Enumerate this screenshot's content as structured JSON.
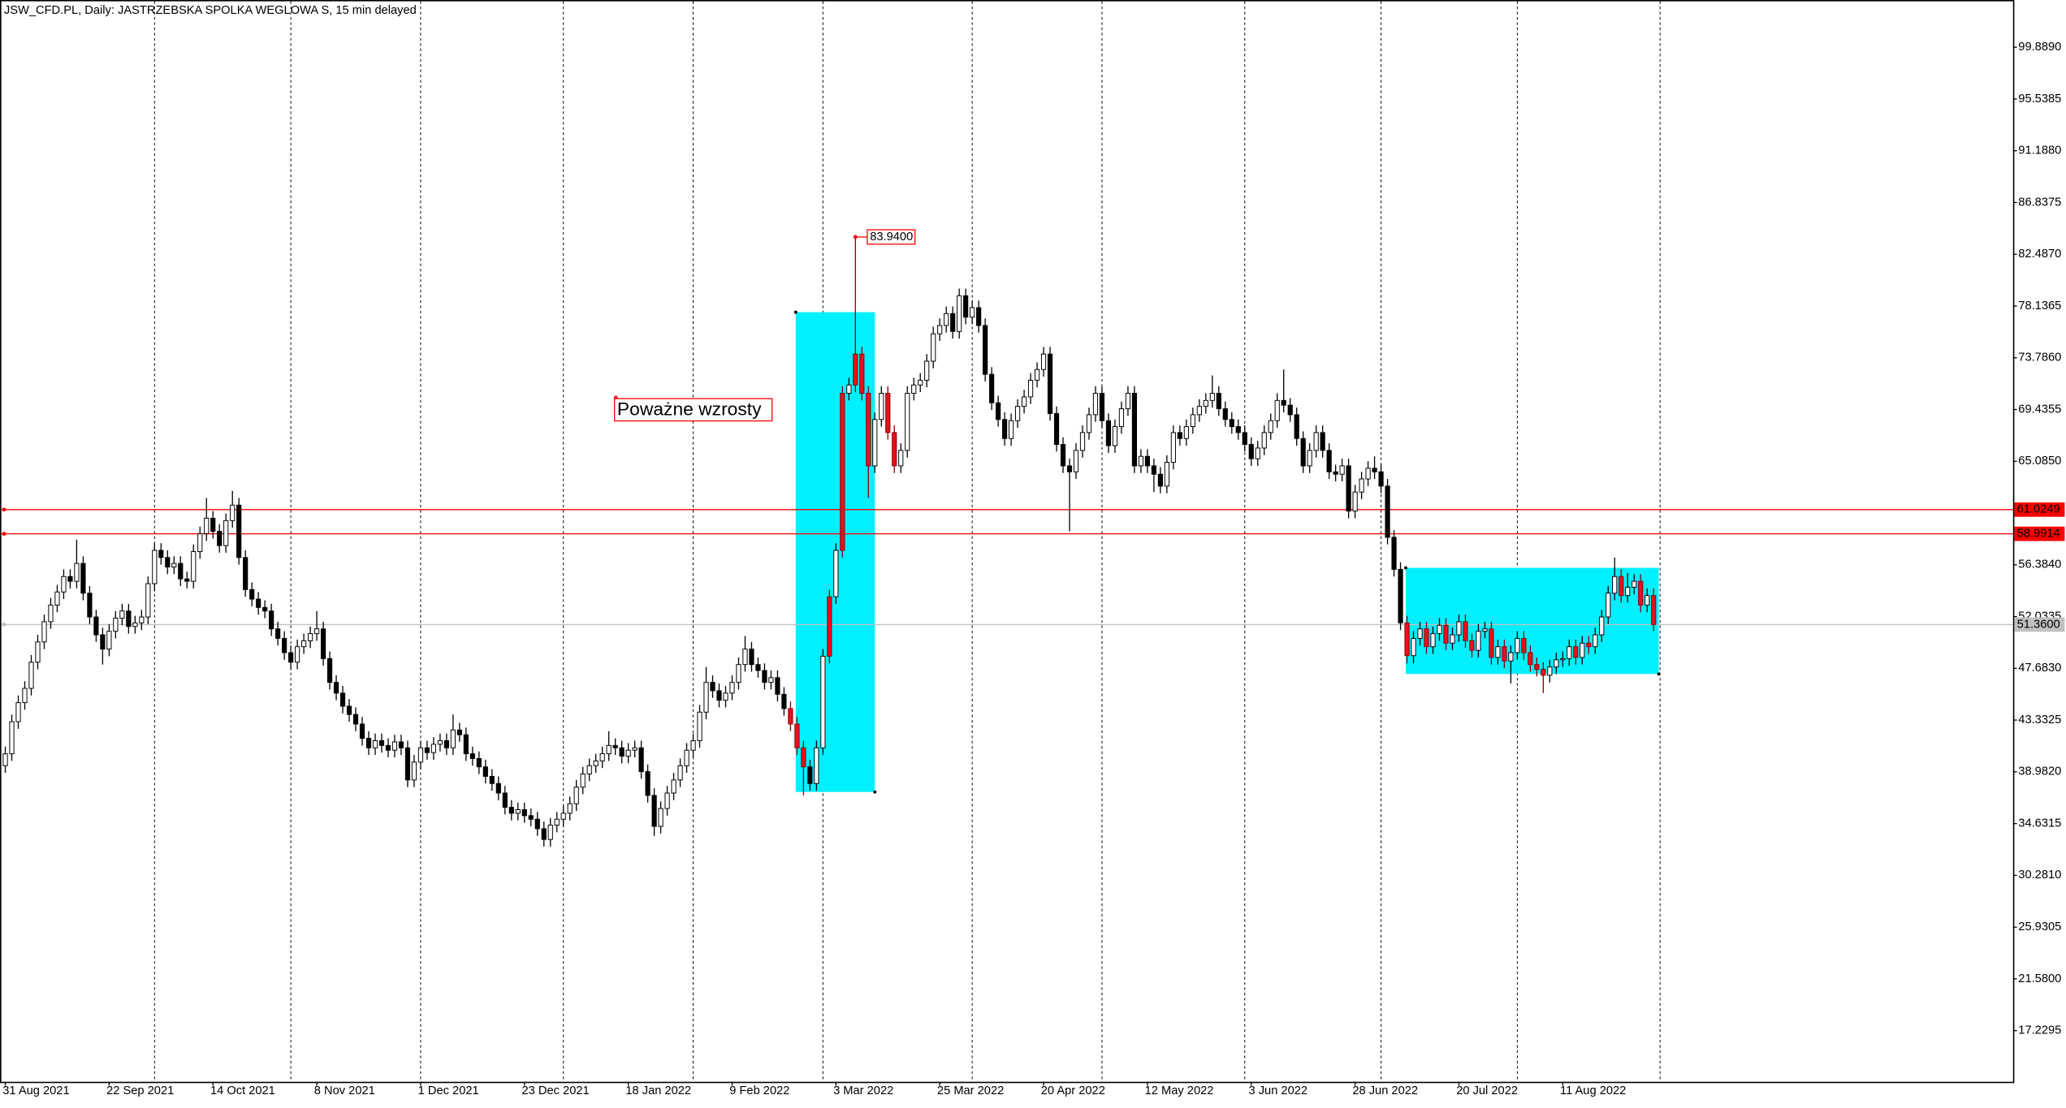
{
  "chart_data": {
    "type": "candlestick",
    "title": "JSW_CFD.PL, Daily:  JASTRZEBSKA SPOLKA WEGLOWA S, 15 min delayed",
    "open": [
      39.5,
      40.5,
      43.2,
      44.8,
      46.0,
      48.2,
      49.9,
      51.6,
      53.0,
      54.1,
      55.4,
      55.0,
      56.5,
      54.0,
      52.0,
      50.5,
      49.3,
      50.8,
      51.9,
      52.5,
      51.2,
      51.5,
      52.0,
      54.8,
      57.6,
      57.0,
      56.2,
      56.5,
      55.2,
      55.0,
      57.5,
      59.0,
      60.3,
      59.2,
      58.0,
      60.1,
      61.4,
      57.0,
      54.3,
      53.5,
      52.8,
      52.5,
      51.0,
      50.2,
      49.0,
      48.2,
      49.5,
      50.0,
      50.6,
      51.0,
      48.5,
      46.5,
      45.6,
      44.5,
      43.8,
      43.0,
      41.8,
      41.0,
      41.6,
      41.2,
      40.8,
      41.5,
      41.0,
      38.3,
      39.8,
      41.0,
      40.6,
      41.3,
      41.6,
      41.0,
      42.5,
      42.1,
      40.5,
      40.1,
      39.4,
      38.6,
      38.0,
      37.2,
      36.0,
      35.5,
      35.8,
      35.3,
      35.0,
      34.2,
      33.3,
      34.5,
      35.0,
      35.5,
      36.3,
      37.7,
      38.8,
      39.5,
      39.9,
      40.5,
      41.2,
      41.0,
      40.3,
      40.8,
      41.0,
      39.0,
      37.0,
      34.4,
      35.9,
      37.2,
      38.3,
      39.5,
      40.8,
      41.6,
      44.0,
      46.5,
      45.8,
      45.0,
      45.6,
      46.5,
      48.0,
      49.3,
      48.0,
      47.5,
      46.5,
      46.9,
      45.5,
      44.3,
      43.0,
      41.0,
      39.4,
      38.0,
      41.0,
      48.7,
      53.7,
      57.6,
      70.8,
      71.5,
      74.1,
      70.8,
      64.7,
      68.6,
      70.8,
      67.5,
      64.7,
      66.0,
      70.8,
      71.5,
      71.9,
      73.5,
      75.8,
      76.5,
      77.5,
      76.0,
      79.0,
      77.2,
      78.0,
      76.5,
      72.4,
      70.0,
      68.6,
      67.0,
      68.5,
      69.7,
      70.5,
      71.9,
      72.8,
      74.1,
      69.1,
      66.5,
      64.7,
      64.2,
      66.0,
      67.5,
      69.0,
      70.8,
      68.5,
      66.4,
      68.0,
      69.5,
      70.8,
      64.7,
      65.5,
      64.7,
      64.0,
      63.0,
      65.0,
      67.5,
      67.0,
      68.0,
      69.0,
      69.7,
      70.2,
      70.8,
      69.5,
      68.6,
      68.0,
      67.5,
      66.5,
      65.3,
      66.2,
      67.5,
      68.5,
      70.2,
      69.8,
      69.0,
      67.0,
      64.7,
      66.0,
      67.5,
      66.0,
      64.2,
      64.0,
      64.7,
      60.9,
      62.5,
      63.6,
      64.5,
      64.2,
      63.0,
      58.7,
      56.0,
      51.5,
      48.75,
      50.2,
      51.0,
      49.5,
      50.6,
      51.3,
      49.8,
      50.5,
      51.6,
      50.0,
      49.2,
      50.8,
      51.0,
      48.6,
      49.5,
      48.3,
      49.0,
      50.2,
      49.0,
      48.0,
      47.6,
      47.1,
      47.8,
      48.4,
      48.5,
      49.5,
      48.6,
      49.8,
      49.5,
      50.5,
      52.0,
      54.0,
      55.4,
      53.8,
      54.5,
      55.0,
      53.0,
      53.8
    ],
    "high": [
      41.1,
      43.8,
      45.4,
      46.6,
      48.8,
      50.5,
      52.2,
      53.6,
      54.7,
      56.0,
      56.0,
      58.5,
      57.1,
      54.6,
      52.6,
      51.1,
      51.4,
      52.5,
      53.1,
      53.1,
      52.1,
      52.6,
      55.4,
      58.2,
      58.2,
      57.6,
      57.1,
      57.1,
      55.8,
      58.1,
      59.6,
      62.0,
      60.9,
      59.8,
      60.7,
      62.6,
      62.0,
      57.6,
      54.9,
      54.1,
      53.4,
      53.1,
      51.6,
      50.8,
      49.6,
      50.1,
      50.6,
      51.2,
      52.5,
      51.6,
      49.1,
      47.1,
      46.2,
      45.1,
      44.4,
      43.6,
      42.4,
      42.2,
      42.2,
      41.8,
      42.1,
      42.1,
      41.6,
      40.4,
      41.6,
      41.6,
      41.9,
      42.2,
      42.2,
      43.8,
      43.1,
      42.7,
      41.1,
      40.7,
      40.0,
      39.2,
      38.6,
      37.8,
      36.6,
      36.4,
      36.4,
      35.9,
      35.6,
      34.8,
      35.1,
      35.6,
      36.1,
      36.9,
      38.3,
      39.4,
      40.1,
      40.5,
      41.1,
      42.4,
      41.8,
      41.6,
      41.4,
      41.6,
      41.6,
      39.6,
      37.6,
      36.5,
      37.8,
      38.9,
      40.1,
      41.4,
      42.2,
      44.6,
      47.8,
      47.1,
      46.4,
      46.2,
      47.1,
      48.6,
      50.4,
      49.9,
      48.6,
      48.1,
      47.5,
      47.5,
      46.1,
      44.9,
      43.6,
      41.6,
      40.0,
      41.6,
      49.3,
      54.3,
      58.2,
      71.4,
      72.1,
      83.94,
      74.7,
      71.4,
      69.2,
      71.4,
      71.4,
      68.1,
      66.6,
      71.4,
      72.1,
      72.5,
      74.1,
      76.4,
      77.1,
      78.1,
      78.1,
      79.6,
      79.6,
      78.6,
      78.6,
      77.1,
      73.0,
      70.6,
      69.2,
      69.1,
      70.3,
      71.1,
      72.5,
      73.4,
      74.7,
      74.7,
      69.7,
      67.1,
      65.3,
      66.6,
      68.1,
      69.6,
      71.4,
      71.4,
      69.1,
      68.6,
      70.1,
      71.4,
      71.4,
      66.1,
      66.1,
      65.3,
      64.6,
      65.6,
      68.1,
      68.1,
      68.6,
      69.6,
      70.3,
      70.8,
      72.3,
      71.4,
      70.1,
      69.2,
      68.6,
      68.1,
      67.1,
      66.8,
      68.1,
      69.1,
      70.8,
      72.8,
      70.4,
      69.6,
      67.6,
      66.6,
      68.1,
      68.1,
      66.6,
      64.8,
      65.3,
      65.3,
      63.1,
      64.2,
      65.1,
      65.5,
      64.8,
      63.6,
      59.3,
      56.6,
      52.1,
      50.8,
      51.6,
      51.6,
      51.2,
      51.9,
      51.9,
      51.1,
      52.2,
      52.2,
      50.6,
      51.4,
      51.6,
      51.6,
      50.1,
      50.1,
      49.6,
      50.8,
      50.8,
      49.6,
      48.6,
      48.2,
      48.4,
      49.0,
      49.1,
      50.1,
      50.1,
      50.4,
      50.4,
      51.1,
      52.6,
      54.6,
      57.0,
      56.0,
      55.7,
      55.6,
      55.6,
      54.4,
      54.4
    ],
    "low": [
      38.9,
      39.9,
      42.6,
      44.2,
      45.4,
      47.6,
      49.3,
      51.0,
      52.4,
      53.5,
      54.4,
      54.4,
      53.4,
      51.4,
      49.9,
      48.0,
      48.7,
      50.2,
      51.3,
      50.6,
      50.6,
      50.9,
      51.4,
      54.2,
      56.4,
      55.6,
      55.6,
      54.6,
      54.4,
      54.4,
      56.9,
      58.4,
      58.6,
      57.4,
      57.4,
      59.5,
      56.4,
      53.7,
      52.9,
      52.2,
      51.9,
      50.4,
      49.6,
      48.4,
      47.6,
      47.6,
      48.9,
      49.4,
      50.0,
      47.9,
      45.9,
      45.0,
      43.9,
      43.2,
      42.4,
      41.2,
      40.4,
      40.4,
      40.6,
      40.2,
      40.2,
      40.4,
      37.7,
      37.7,
      39.2,
      40.0,
      40.0,
      40.7,
      40.4,
      40.4,
      41.5,
      39.9,
      39.5,
      38.8,
      38.0,
      37.4,
      36.6,
      35.4,
      34.9,
      34.9,
      34.7,
      34.4,
      33.6,
      32.7,
      32.7,
      33.9,
      34.4,
      34.9,
      35.7,
      37.1,
      38.2,
      38.9,
      39.3,
      39.9,
      40.4,
      39.7,
      39.7,
      40.2,
      38.4,
      36.4,
      33.6,
      33.8,
      35.3,
      36.6,
      37.7,
      38.9,
      40.2,
      41.0,
      43.4,
      45.2,
      44.4,
      44.4,
      45.0,
      45.9,
      47.4,
      47.4,
      46.9,
      45.9,
      45.9,
      44.9,
      43.7,
      42.4,
      40.4,
      37.0,
      37.4,
      37.4,
      40.4,
      48.1,
      53.1,
      57.0,
      70.2,
      70.9,
      70.2,
      62.0,
      64.1,
      68.0,
      66.9,
      64.1,
      64.1,
      65.4,
      70.2,
      70.9,
      71.3,
      72.9,
      75.2,
      75.9,
      75.4,
      75.4,
      76.6,
      76.6,
      75.9,
      71.8,
      69.4,
      68.0,
      66.4,
      66.4,
      67.9,
      69.1,
      69.9,
      71.3,
      72.2,
      68.5,
      65.9,
      64.1,
      59.2,
      63.6,
      65.4,
      66.9,
      68.4,
      67.9,
      65.8,
      65.8,
      67.4,
      68.9,
      64.1,
      64.1,
      64.1,
      62.5,
      62.4,
      62.4,
      64.4,
      66.4,
      66.4,
      67.4,
      68.4,
      69.1,
      69.6,
      68.9,
      68.0,
      67.4,
      66.9,
      65.9,
      64.7,
      64.7,
      65.6,
      66.9,
      67.9,
      69.2,
      68.4,
      66.4,
      64.1,
      64.1,
      65.4,
      65.4,
      63.6,
      63.4,
      63.4,
      60.3,
      60.3,
      61.9,
      63.0,
      63.6,
      62.4,
      58.1,
      55.4,
      50.9,
      48.1,
      48.1,
      49.6,
      48.9,
      48.9,
      50.0,
      49.2,
      49.2,
      49.9,
      49.4,
      48.6,
      48.6,
      50.2,
      48.0,
      48.0,
      47.7,
      46.4,
      48.4,
      48.4,
      47.4,
      47.0,
      45.6,
      46.5,
      47.2,
      47.8,
      47.9,
      48.0,
      48.0,
      48.9,
      48.9,
      49.9,
      51.4,
      53.4,
      53.2,
      53.2,
      53.9,
      52.4,
      52.4,
      50.8
    ],
    "close": [
      40.5,
      43.2,
      44.8,
      46.0,
      48.2,
      49.9,
      51.6,
      53.0,
      54.1,
      55.4,
      55.0,
      56.5,
      54.0,
      52.0,
      50.5,
      49.3,
      50.8,
      51.9,
      52.5,
      51.2,
      51.5,
      52.0,
      54.8,
      57.6,
      57.0,
      56.2,
      56.5,
      55.2,
      55.0,
      57.5,
      59.0,
      60.3,
      59.2,
      58.0,
      60.1,
      61.4,
      57.0,
      54.3,
      53.5,
      52.8,
      52.5,
      51.0,
      50.2,
      49.0,
      48.2,
      49.5,
      50.0,
      50.6,
      51.0,
      48.5,
      46.5,
      45.6,
      44.5,
      43.8,
      43.0,
      41.8,
      41.0,
      41.6,
      41.2,
      40.8,
      41.5,
      41.0,
      38.3,
      39.8,
      41.0,
      40.6,
      41.3,
      41.6,
      41.0,
      42.5,
      42.1,
      40.5,
      40.1,
      39.4,
      38.6,
      38.0,
      37.2,
      36.0,
      35.5,
      35.8,
      35.3,
      35.0,
      34.2,
      33.3,
      34.5,
      35.0,
      35.5,
      36.3,
      37.7,
      38.8,
      39.5,
      39.9,
      40.5,
      41.2,
      41.0,
      40.3,
      40.8,
      41.0,
      39.0,
      37.0,
      34.4,
      35.9,
      37.2,
      38.3,
      39.5,
      40.8,
      41.6,
      44.0,
      46.5,
      45.8,
      45.0,
      45.6,
      46.5,
      48.0,
      49.3,
      48.0,
      47.5,
      46.5,
      46.9,
      45.5,
      44.3,
      43.0,
      41.0,
      39.4,
      38.0,
      41.0,
      48.7,
      53.7,
      57.6,
      70.8,
      71.5,
      74.1,
      70.8,
      64.7,
      68.6,
      70.8,
      67.5,
      64.7,
      66.0,
      70.8,
      71.5,
      71.9,
      73.5,
      75.8,
      76.5,
      77.5,
      76.0,
      79.0,
      77.2,
      78.0,
      76.5,
      72.4,
      70.0,
      68.6,
      67.0,
      68.5,
      69.7,
      70.5,
      71.9,
      72.8,
      74.1,
      69.1,
      66.5,
      64.7,
      64.2,
      66.0,
      67.5,
      69.0,
      70.8,
      68.5,
      66.4,
      68.0,
      69.5,
      70.8,
      64.7,
      65.5,
      64.7,
      64.0,
      63.0,
      65.0,
      67.5,
      67.0,
      68.0,
      69.0,
      69.7,
      70.2,
      70.8,
      69.5,
      68.6,
      68.0,
      67.5,
      66.5,
      65.3,
      66.2,
      67.5,
      68.5,
      70.2,
      69.8,
      69.0,
      67.0,
      64.7,
      66.0,
      67.5,
      66.0,
      64.2,
      64.0,
      64.7,
      60.9,
      62.5,
      63.6,
      64.5,
      64.2,
      63.0,
      58.7,
      56.0,
      51.5,
      48.75,
      50.2,
      51.0,
      49.5,
      50.6,
      51.3,
      49.8,
      50.5,
      51.6,
      50.0,
      49.2,
      50.8,
      51.0,
      48.6,
      49.5,
      48.3,
      49.0,
      50.2,
      49.0,
      48.0,
      47.6,
      47.1,
      47.8,
      48.4,
      48.5,
      49.5,
      48.6,
      49.8,
      49.5,
      50.5,
      52.0,
      54.0,
      55.4,
      53.8,
      54.5,
      55.0,
      53.0,
      53.8,
      51.36
    ],
    "highlight": [
      121,
      122,
      123,
      127,
      129,
      131,
      132,
      133,
      136,
      137,
      216,
      219,
      222,
      225,
      226,
      229,
      231,
      234,
      235,
      236,
      237,
      242,
      244,
      249,
      252,
      254
    ],
    "colors": {
      "up": "#ffffff",
      "down": "#000000",
      "highlight": "#e8101c",
      "rectangle": "#00f0ff"
    },
    "ylim": [
      12.93,
      103.86
    ],
    "yticks": [
      {
        "value": 17.2295,
        "label": "17.2295"
      },
      {
        "value": 21.58,
        "label": "21.5800"
      },
      {
        "value": 25.9305,
        "label": "25.9305"
      },
      {
        "value": 30.281,
        "label": "30.2810"
      },
      {
        "value": 34.6315,
        "label": "34.6315"
      },
      {
        "value": 38.982,
        "label": "38.9820"
      },
      {
        "value": 43.3325,
        "label": "43.3325"
      },
      {
        "value": 47.683,
        "label": "47.6830"
      },
      {
        "value": 52.0335,
        "label": "52.0335"
      },
      {
        "value": 56.384,
        "label": "56.3840"
      },
      {
        "value": 65.085,
        "label": "65.0850"
      },
      {
        "value": 69.4355,
        "label": "69.4355"
      },
      {
        "value": 73.786,
        "label": "73.7860"
      },
      {
        "value": 78.1365,
        "label": "78.1365"
      },
      {
        "value": 82.487,
        "label": "82.4870"
      },
      {
        "value": 86.8375,
        "label": "86.8375"
      },
      {
        "value": 91.188,
        "label": "91.1880"
      },
      {
        "value": 95.5385,
        "label": "95.5385"
      },
      {
        "value": 99.889,
        "label": "99.8890"
      }
    ],
    "xticks": [
      {
        "value": 0,
        "label": "31 Aug 2021"
      },
      {
        "value": 16,
        "label": "22 Sep 2021"
      },
      {
        "value": 32,
        "label": "14 Oct 2021"
      },
      {
        "value": 48,
        "label": "8 Nov 2021"
      },
      {
        "value": 64,
        "label": "1 Dec 2021"
      },
      {
        "value": 80,
        "label": "23 Dec 2021"
      },
      {
        "value": 96,
        "label": "18 Jan 2022"
      },
      {
        "value": 112,
        "label": "9 Feb 2022"
      },
      {
        "value": 128,
        "label": "3 Mar 2022"
      },
      {
        "value": 144,
        "label": "25 Mar 2022"
      },
      {
        "value": 160,
        "label": "20 Apr 2022"
      },
      {
        "value": 176,
        "label": "12 May 2022"
      },
      {
        "value": 192,
        "label": "3 Jun 2022"
      },
      {
        "value": 208,
        "label": "28 Jun 2022"
      },
      {
        "value": 224,
        "label": "20 Jul 2022"
      },
      {
        "value": 240,
        "label": "11 Aug 2022"
      }
    ],
    "xgrid": [
      23,
      44,
      64,
      86,
      106,
      126,
      149,
      169,
      191,
      212,
      233,
      255
    ],
    "hlines": [
      {
        "value": 61.0249,
        "label": "61.0249",
        "color": "#ff0000"
      },
      {
        "value": 58.9914,
        "label": "58.9914",
        "color": "#ff0000"
      },
      {
        "value": 51.36,
        "label": "51.3600",
        "color": "#c0c0c0"
      }
    ],
    "rectangles": [
      {
        "x": [
          121.8,
          134
        ],
        "y": [
          37.29,
          77.62
        ]
      },
      {
        "x": [
          215.8,
          254.8
        ],
        "y": [
          47.21,
          56.13
        ]
      }
    ],
    "annotations": [
      {
        "text": "83.9400"
      },
      {
        "text": "Poważne wzrosty"
      }
    ]
  }
}
